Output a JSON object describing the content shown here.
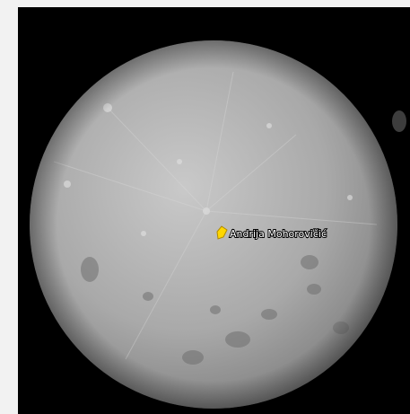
{
  "map": {
    "placemark": {
      "label": "Andrija Mohorovičić"
    }
  }
}
